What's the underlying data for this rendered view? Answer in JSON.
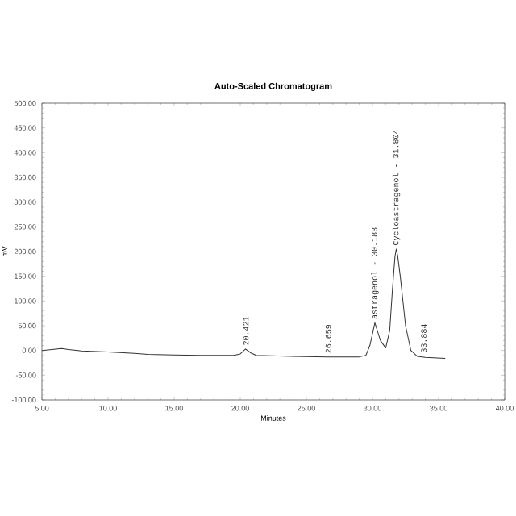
{
  "chart_data": {
    "type": "line",
    "title": "Auto-Scaled Chromatogram",
    "xlabel": "Minutes",
    "ylabel": "mV",
    "xlim": [
      5,
      40
    ],
    "ylim": [
      -100,
      500
    ],
    "xticks": [
      {
        "value": 5,
        "label": "5.00"
      },
      {
        "value": 10,
        "label": "10.00"
      },
      {
        "value": 15,
        "label": "15.00"
      },
      {
        "value": 20,
        "label": "20.00"
      },
      {
        "value": 25,
        "label": "25.00"
      },
      {
        "value": 30,
        "label": "30.00"
      },
      {
        "value": 35,
        "label": "35.00"
      },
      {
        "value": 40,
        "label": "40.00"
      }
    ],
    "yticks": [
      {
        "value": -100,
        "label": "-100.00"
      },
      {
        "value": -50,
        "label": "-50.00"
      },
      {
        "value": 0,
        "label": "0.00"
      },
      {
        "value": 50,
        "label": "50.00"
      },
      {
        "value": 100,
        "label": "100.00"
      },
      {
        "value": 150,
        "label": "150.00"
      },
      {
        "value": 200,
        "label": "200.00"
      },
      {
        "value": 250,
        "label": "250.00"
      },
      {
        "value": 300,
        "label": "300.00"
      },
      {
        "value": 350,
        "label": "350.00"
      },
      {
        "value": 400,
        "label": "400.00"
      },
      {
        "value": 450,
        "label": "450.00"
      },
      {
        "value": 500,
        "label": "500.00"
      }
    ],
    "x": [
      5,
      6.5,
      7,
      8,
      10,
      12,
      13,
      15,
      17,
      19.5,
      20.0,
      20.4,
      20.8,
      21.2,
      24,
      26.6,
      29,
      29.5,
      29.8,
      30.18,
      30.6,
      31.0,
      31.3,
      31.5,
      31.7,
      31.8,
      31.9,
      32.1,
      32.5,
      32.9,
      33.4,
      34,
      35.5
    ],
    "series": [
      {
        "color": "#333333",
        "values": [
          0,
          4,
          2,
          -1,
          -3,
          -6,
          -8,
          -9,
          -10,
          -10,
          -7,
          3,
          -5,
          -10,
          -12,
          -13,
          -13,
          -10,
          10,
          56,
          20,
          5,
          40,
          120,
          190,
          205,
          192,
          150,
          50,
          0,
          -12,
          -14,
          -16
        ]
      }
    ],
    "annotations": [
      {
        "text": "20.421",
        "x": 20.421,
        "y": 3
      },
      {
        "text": "26.659",
        "x": 26.659,
        "y": -13
      },
      {
        "text": "astragenol - 30.183",
        "x": 30.183,
        "y": 56
      },
      {
        "text": "Cycloastragenol - 31.804",
        "x": 31.804,
        "y": 205
      },
      {
        "text": "33.884",
        "x": 33.884,
        "y": -12
      }
    ],
    "grid": false,
    "marker": "none",
    "line_style": "solid"
  }
}
